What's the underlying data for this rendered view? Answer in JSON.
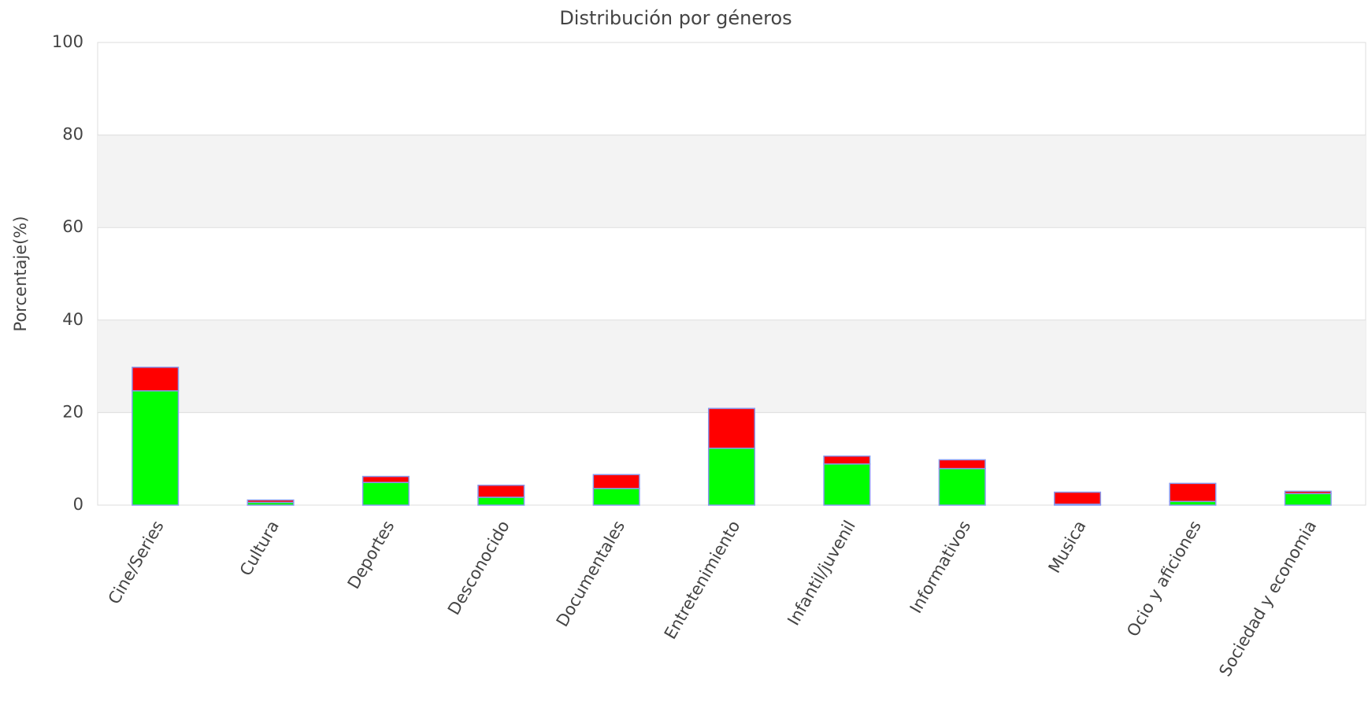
{
  "chart_data": {
    "type": "stacked_bar",
    "title": "Distribución por géneros",
    "y_label": "Porcentaje(%)",
    "categories": [
      "Cine/Series",
      "Cultura",
      "Deportes",
      "Desconocido",
      "Documentales",
      "Entretenimiento",
      "Infantil/juvenil",
      "Informativos",
      "Musica",
      "Ocio y aficiones",
      "Sociedad y economia"
    ],
    "series": [
      {
        "color": "#00ff00",
        "values": [
          24.7,
          0.6,
          4.9,
          1.7,
          3.6,
          12.3,
          8.9,
          7.9,
          0.2,
          0.8,
          2.5
        ]
      },
      {
        "color": "#ff0000",
        "values": [
          5.1,
          0.5,
          1.3,
          2.6,
          3.0,
          8.6,
          1.7,
          1.9,
          2.6,
          3.9,
          0.5
        ]
      }
    ],
    "ylim": [
      0,
      100
    ],
    "yticks": [
      0,
      20,
      40,
      60,
      80,
      100
    ],
    "grid": true
  }
}
